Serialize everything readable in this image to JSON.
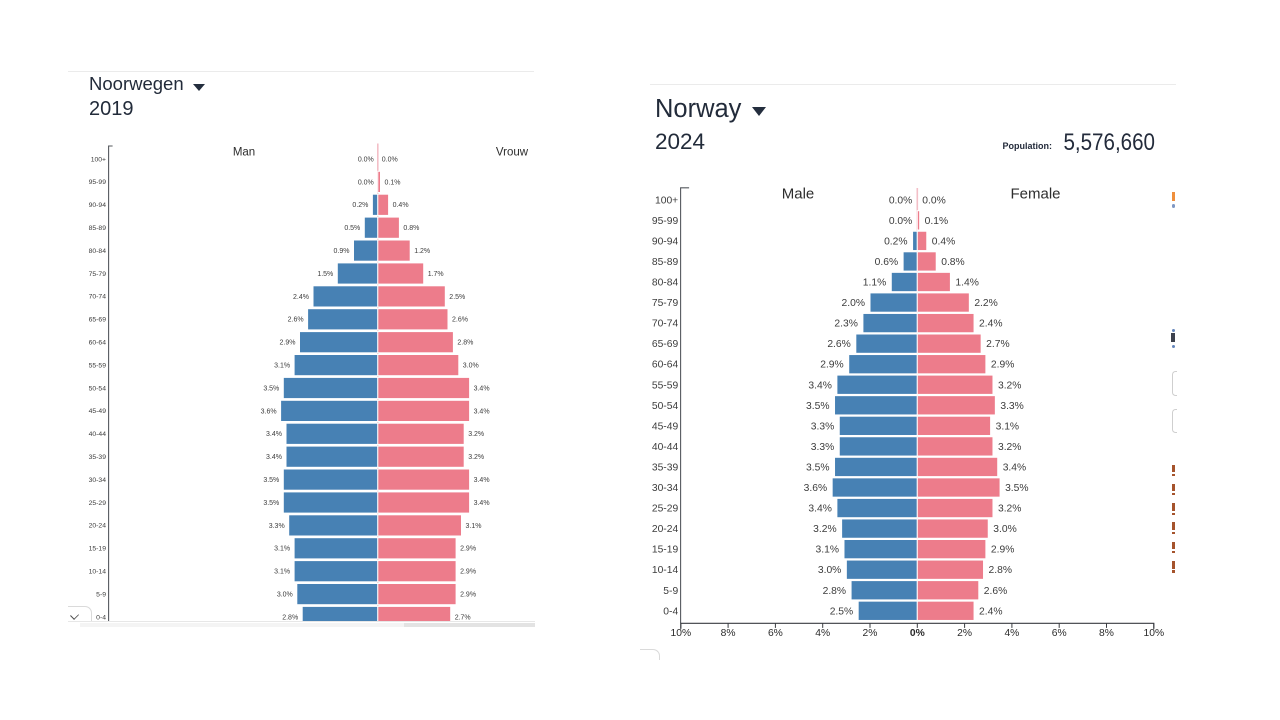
{
  "page": {
    "background": "#ffffff"
  },
  "colors": {
    "male_bar": "#4781b4",
    "female_bar": "#ed7c8b",
    "center_line": "#f3bfc7",
    "bar_outline": "#ffffff",
    "title_text": "#222b3a",
    "label_text": "#3c3c3c",
    "age_text": "#3c3c3c",
    "axis_line": "#55585e",
    "border_line": "#ebebeb"
  },
  "icons": {
    "dropdown": "caret-down-icon",
    "expand": "chevron-down-icon"
  },
  "chart_data": [
    {
      "type": "bar",
      "variant": "population-pyramid",
      "title": "Noorwegen",
      "year": "2019",
      "male_header": "Man",
      "female_header": "Vrouw",
      "value_suffix": "%",
      "xlim": [
        -10,
        10
      ],
      "x_axis_visible": false,
      "categories": [
        "100+",
        "95-99",
        "90-94",
        "85-89",
        "80-84",
        "75-79",
        "70-74",
        "65-69",
        "60-64",
        "55-59",
        "50-54",
        "45-49",
        "40-44",
        "35-39",
        "30-34",
        "25-29",
        "20-24",
        "15-19",
        "10-14",
        "5-9",
        "0-4"
      ],
      "series": [
        {
          "name": "Man",
          "side": "left",
          "values": [
            0.0,
            0.0,
            0.2,
            0.5,
            0.9,
            1.5,
            2.4,
            2.6,
            2.9,
            3.1,
            3.5,
            3.6,
            3.4,
            3.4,
            3.5,
            3.5,
            3.3,
            3.1,
            3.1,
            3.0,
            2.8
          ]
        },
        {
          "name": "Vrouw",
          "side": "right",
          "values": [
            0.0,
            0.1,
            0.4,
            0.8,
            1.2,
            1.7,
            2.5,
            2.6,
            2.8,
            3.0,
            3.4,
            3.4,
            3.2,
            3.2,
            3.4,
            3.4,
            3.1,
            2.9,
            2.9,
            2.9,
            2.7
          ]
        }
      ]
    },
    {
      "type": "bar",
      "variant": "population-pyramid",
      "title": "Norway",
      "year": "2024",
      "population_label": "Population:",
      "population_value": "5,576,660",
      "male_header": "Male",
      "female_header": "Female",
      "value_suffix": "%",
      "xlim": [
        -10,
        10
      ],
      "x_axis_visible": true,
      "x_tick_labels": [
        "10%",
        "8%",
        "6%",
        "4%",
        "2%",
        "0%",
        "2%",
        "4%",
        "6%",
        "8%",
        "10%"
      ],
      "categories": [
        "100+",
        "95-99",
        "90-94",
        "85-89",
        "80-84",
        "75-79",
        "70-74",
        "65-69",
        "60-64",
        "55-59",
        "50-54",
        "45-49",
        "40-44",
        "35-39",
        "30-34",
        "25-29",
        "20-24",
        "15-19",
        "10-14",
        "5-9",
        "0-4"
      ],
      "series": [
        {
          "name": "Male",
          "side": "left",
          "values": [
            0.0,
            0.0,
            0.2,
            0.6,
            1.1,
            2.0,
            2.3,
            2.6,
            2.9,
            3.4,
            3.5,
            3.3,
            3.3,
            3.5,
            3.6,
            3.4,
            3.2,
            3.1,
            3.0,
            2.8,
            2.5
          ]
        },
        {
          "name": "Female",
          "side": "right",
          "values": [
            0.0,
            0.1,
            0.4,
            0.8,
            1.4,
            2.2,
            2.4,
            2.7,
            2.9,
            3.2,
            3.3,
            3.1,
            3.2,
            3.4,
            3.5,
            3.2,
            3.0,
            2.9,
            2.8,
            2.6,
            2.4
          ]
        }
      ]
    }
  ]
}
